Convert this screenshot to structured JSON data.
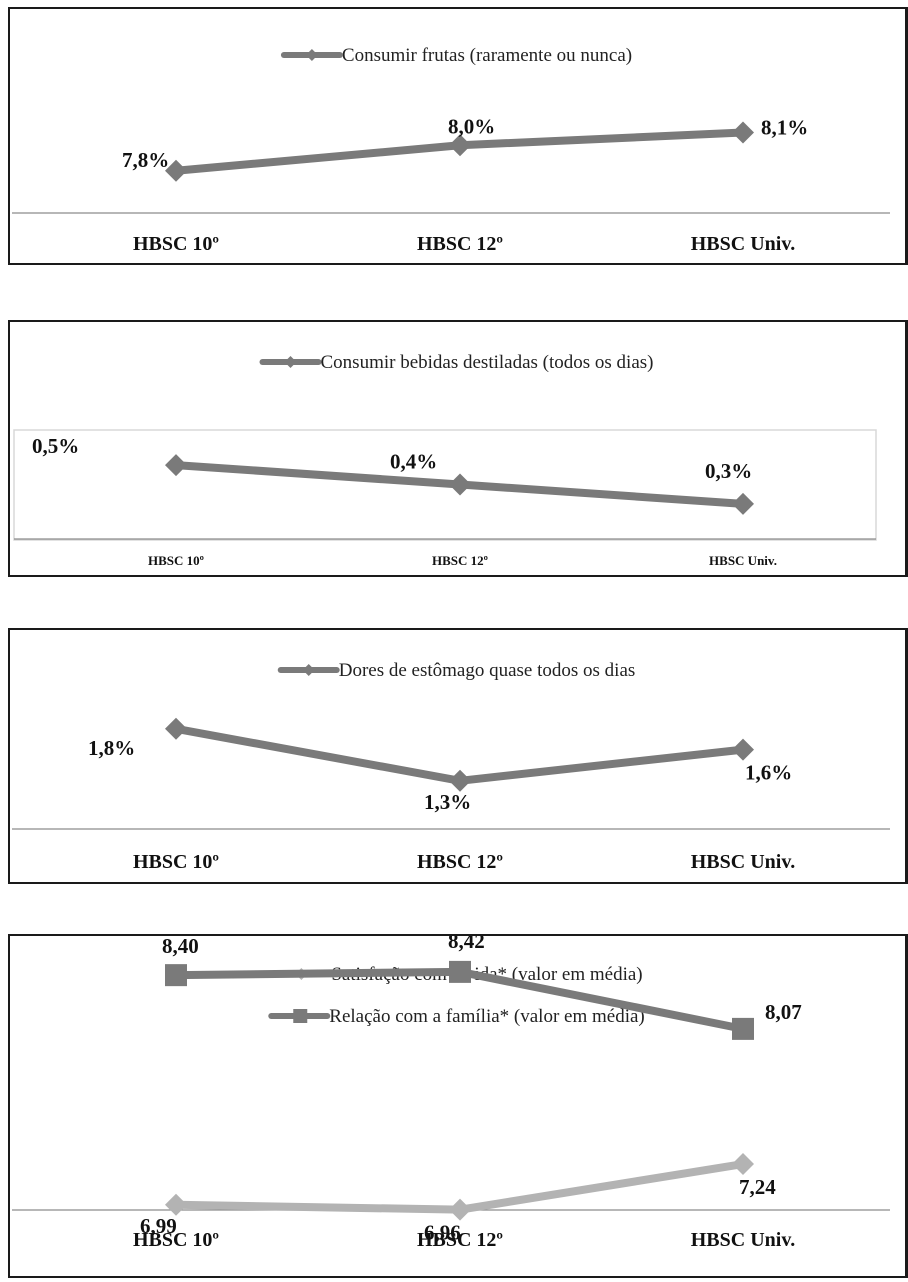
{
  "colors": {
    "dark_series": "#7a7a7a",
    "light_series": "#b3b3b3",
    "axis": "#8c8c8c",
    "border": "#1a1a1a"
  },
  "chart_data": [
    {
      "type": "line",
      "categories": [
        "HBSC 10º",
        "HBSC 12º",
        "HBSC Univ."
      ],
      "series": [
        {
          "name": "Consumir frutas (raramente ou nunca)",
          "values": [
            7.8,
            8.0,
            8.1
          ],
          "labels": [
            "7,8%",
            "8,0%",
            "8,1%"
          ],
          "marker": "diamond",
          "color": "#7a7a7a"
        }
      ],
      "grid": false,
      "legend": "top-center"
    },
    {
      "type": "line",
      "categories": [
        "HBSC 10º",
        "HBSC 12º",
        "HBSC Univ."
      ],
      "series": [
        {
          "name": "Consumir bebidas destiladas (todos os dias)",
          "values": [
            0.5,
            0.4,
            0.3
          ],
          "labels": [
            "0,5%",
            "0,4%",
            "0,3%"
          ],
          "marker": "diamond",
          "color": "#7a7a7a"
        }
      ],
      "grid": false,
      "legend": "top-center"
    },
    {
      "type": "line",
      "categories": [
        "HBSC 10º",
        "HBSC 12º",
        "HBSC Univ."
      ],
      "series": [
        {
          "name": "Dores de estômago quase todos os dias",
          "values": [
            1.8,
            1.3,
            1.6
          ],
          "labels": [
            "1,8%",
            "1,3%",
            "1,6%"
          ],
          "marker": "diamond",
          "color": "#7a7a7a"
        }
      ],
      "grid": false,
      "legend": "top-center"
    },
    {
      "type": "line",
      "categories": [
        "HBSC 10º",
        "HBSC 12º",
        "HBSC Univ."
      ],
      "series": [
        {
          "name": "Satisfação com a vida* (valor em média)",
          "values": [
            6.99,
            6.96,
            7.24
          ],
          "labels": [
            "6,99",
            "6,96",
            "7,24"
          ],
          "marker": "diamond",
          "color": "#b3b3b3"
        },
        {
          "name": "Relação com a família* (valor em média)",
          "values": [
            8.4,
            8.42,
            8.07
          ],
          "labels": [
            "8,40",
            "8,42",
            "8,07"
          ],
          "marker": "square",
          "color": "#7a7a7a"
        }
      ],
      "grid": false,
      "legend": "top-center"
    }
  ]
}
